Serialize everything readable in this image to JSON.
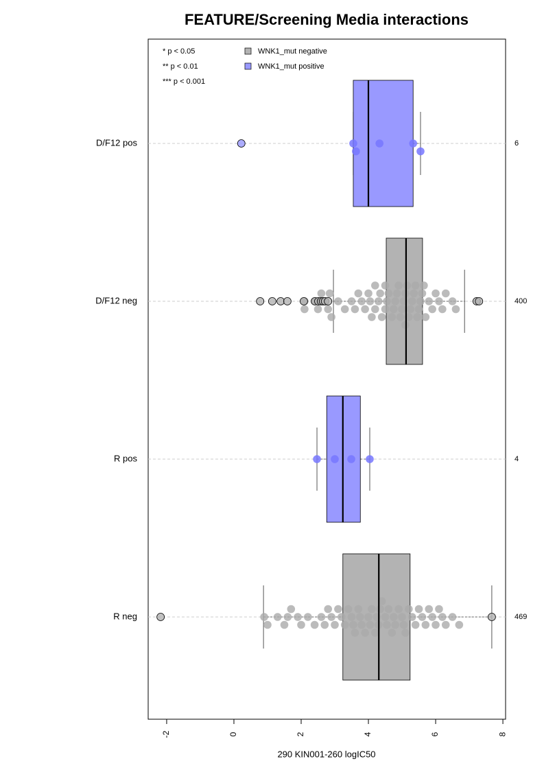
{
  "chart_data": {
    "type": "boxplot",
    "title": "FEATURE/Screening Media interactions",
    "x_label": "290 KIN001-260 logIC50",
    "annotations": [
      "* p < 0.05",
      "** p < 0.01",
      "*** p < 0.001"
    ],
    "legend": [
      {
        "label": "WNK1_mut negative",
        "color": "#b3b3b3"
      },
      {
        "label": "WNK1_mut positive",
        "color": "#9999ff"
      }
    ],
    "xlim": [
      -2.55,
      8.08
    ],
    "xticks": [
      -2,
      0,
      2,
      4,
      6,
      8
    ],
    "grid": true,
    "series": [
      {
        "name": "D/F12 pos",
        "count": 6,
        "color": "#9999ff",
        "whisker_low": 3.55,
        "q1": 3.55,
        "median": 4.0,
        "q3": 5.33,
        "whisker_high": 5.55,
        "outliers": [
          0.22
        ],
        "points": [
          3.55,
          3.63,
          4.33,
          5.33,
          5.55
        ]
      },
      {
        "name": "D/F12 neg",
        "count": 400,
        "color": "#b3b3b3",
        "whisker_low": 2.96,
        "q1": 4.53,
        "median": 5.12,
        "q3": 5.61,
        "whisker_high": 6.86,
        "outliers": [
          0.78,
          1.14,
          1.39,
          1.59,
          2.08,
          2.41,
          2.51,
          2.59,
          2.65,
          2.71,
          2.8,
          7.22,
          7.29
        ],
        "points": [
          2.1,
          2.1,
          2.4,
          2.5,
          2.6,
          2.7,
          2.8,
          2.85,
          2.9,
          3.1,
          3.3,
          3.5,
          3.6,
          3.7,
          3.8,
          3.9,
          4.0,
          4.05,
          4.1,
          4.2,
          4.2,
          4.3,
          4.35,
          4.4,
          4.5,
          4.5,
          4.55,
          4.6,
          4.7,
          4.75,
          4.8,
          4.85,
          4.9,
          4.95,
          5.0,
          5.05,
          5.1,
          5.1,
          5.15,
          5.2,
          5.25,
          5.3,
          5.35,
          5.4,
          5.45,
          5.5,
          5.55,
          5.6,
          5.65,
          5.7,
          5.8,
          5.9,
          6.0,
          6.1,
          6.2,
          6.3,
          6.5,
          6.6
        ]
      },
      {
        "name": "R pos",
        "count": 4,
        "color": "#9999ff",
        "whisker_low": 2.47,
        "q1": 2.76,
        "median": 3.24,
        "q3": 3.76,
        "whisker_high": 4.04,
        "outliers": [],
        "points": [
          2.47,
          3.0,
          3.49,
          4.04
        ]
      },
      {
        "name": "R neg",
        "count": 469,
        "color": "#b3b3b3",
        "whisker_low": 0.88,
        "q1": 3.24,
        "median": 4.31,
        "q3": 5.24,
        "whisker_high": 7.67,
        "outliers": [
          -2.18,
          7.67
        ],
        "points": [
          0.9,
          1.0,
          1.3,
          1.5,
          1.6,
          1.7,
          1.9,
          2.0,
          2.2,
          2.4,
          2.6,
          2.7,
          2.8,
          2.9,
          3.0,
          3.1,
          3.2,
          3.3,
          3.4,
          3.5,
          3.55,
          3.6,
          3.7,
          3.75,
          3.8,
          3.9,
          4.0,
          4.05,
          4.1,
          4.2,
          4.25,
          4.3,
          4.35,
          4.4,
          4.5,
          4.55,
          4.6,
          4.7,
          4.75,
          4.8,
          4.9,
          5.0,
          5.05,
          5.1,
          5.2,
          5.3,
          5.4,
          5.5,
          5.6,
          5.7,
          5.8,
          5.9,
          6.0,
          6.1,
          6.2,
          6.3,
          6.5,
          6.7
        ]
      }
    ]
  }
}
